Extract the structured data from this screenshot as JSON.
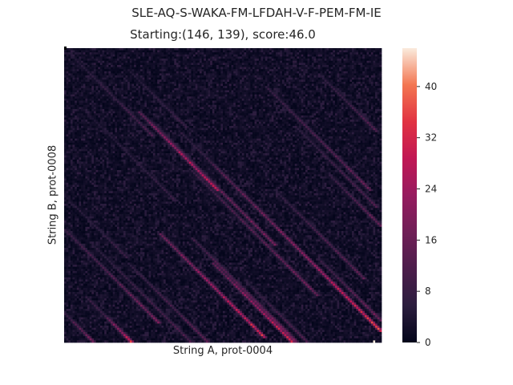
{
  "figure": {
    "title": "SLE-AQ-S-WAKA-FM-LFDAH-V-F-PEM-FM-IE",
    "subtitle": "Starting:(146, 139), score:46.0"
  },
  "chart_data": {
    "type": "heatmap",
    "title": "SLE-AQ-S-WAKA-FM-LFDAH-V-F-PEM-FM-IE",
    "subtitle": "Starting:(146, 139), score:46.0",
    "xlabel": "String A, prot-0004",
    "ylabel": "String B, prot-0008",
    "grid": false,
    "n_cols": 150,
    "n_rows": 140,
    "colormap": "rocket",
    "colorbar": {
      "min": 0,
      "max": 46,
      "ticks": [
        0,
        8,
        16,
        24,
        32,
        40
      ],
      "tick_labels": [
        "0",
        "8",
        "16",
        "24",
        "32",
        "40"
      ]
    },
    "starting_cell": [
      146,
      139
    ],
    "score": 46.0,
    "background_level": 3,
    "diagonal_streaks": [
      {
        "col_start": 2,
        "row_start": 2,
        "length": 40,
        "peak": 12
      },
      {
        "col_start": 8,
        "row_start": 28,
        "length": 45,
        "peak": 9
      },
      {
        "col_start": 30,
        "row_start": 10,
        "length": 28,
        "peak": 10
      },
      {
        "col_start": 35,
        "row_start": 30,
        "length": 38,
        "peak": 36
      },
      {
        "col_start": 40,
        "row_start": 34,
        "length": 60,
        "peak": 22
      },
      {
        "col_start": 55,
        "row_start": 40,
        "length": 70,
        "peak": 16
      },
      {
        "col_start": 70,
        "row_start": 55,
        "length": 75,
        "peak": 30
      },
      {
        "col_start": 60,
        "row_start": 58,
        "length": 60,
        "peak": 20
      },
      {
        "col_start": 95,
        "row_start": 18,
        "length": 50,
        "peak": 18
      },
      {
        "col_start": 120,
        "row_start": 12,
        "length": 28,
        "peak": 14
      },
      {
        "col_start": 110,
        "row_start": 38,
        "length": 38,
        "peak": 14
      },
      {
        "col_start": 0,
        "row_start": 70,
        "length": 30,
        "peak": 10
      },
      {
        "col_start": 0,
        "row_start": 86,
        "length": 45,
        "peak": 20
      },
      {
        "col_start": 12,
        "row_start": 92,
        "length": 50,
        "peak": 14
      },
      {
        "col_start": 45,
        "row_start": 88,
        "length": 50,
        "peak": 36
      },
      {
        "col_start": 60,
        "row_start": 90,
        "length": 50,
        "peak": 22
      },
      {
        "col_start": 70,
        "row_start": 102,
        "length": 40,
        "peak": 36
      },
      {
        "col_start": 30,
        "row_start": 102,
        "length": 40,
        "peak": 16
      },
      {
        "col_start": 85,
        "row_start": 110,
        "length": 30,
        "peak": 14
      },
      {
        "col_start": 10,
        "row_start": 118,
        "length": 28,
        "peak": 18
      },
      {
        "col_start": 0,
        "row_start": 126,
        "length": 16,
        "peak": 22
      },
      {
        "col_start": 20,
        "row_start": 128,
        "length": 12,
        "peak": 36
      },
      {
        "col_start": 100,
        "row_start": 68,
        "length": 42,
        "peak": 16
      },
      {
        "col_start": 110,
        "row_start": 95,
        "length": 44,
        "peak": 44
      },
      {
        "col_start": 120,
        "row_start": 100,
        "length": 30,
        "peak": 20
      },
      {
        "col_start": 125,
        "row_start": 60,
        "length": 25,
        "peak": 18
      }
    ]
  }
}
